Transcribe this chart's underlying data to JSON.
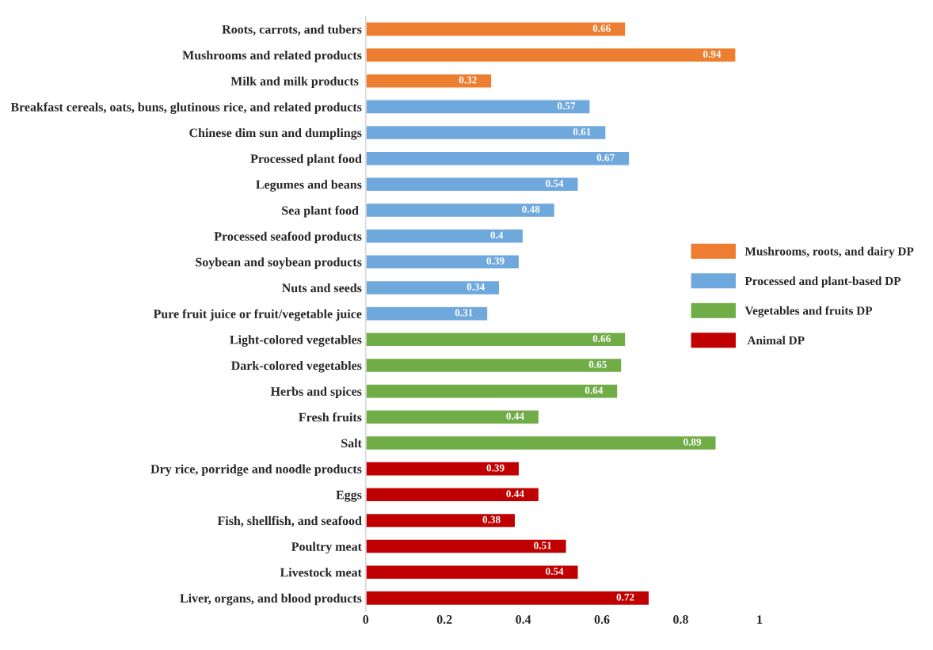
{
  "chart_data": {
    "type": "bar",
    "orientation": "horizontal",
    "categories": [
      "Roots, carrots, and tubers",
      "Mushrooms and related products",
      "Milk and milk products ",
      "Breakfast cereals, oats, buns, glutinous rice, and related products",
      "Chinese dim sun and dumplings",
      "Processed plant food",
      "Legumes and beans",
      "Sea plant food ",
      "Processed seafood products",
      "Soybean and soybean products",
      "Nuts and seeds",
      "Pure fruit juice or fruit/vegetable juice",
      "Light-colored vegetables",
      "Dark-colored vegetables",
      "Herbs and spices",
      "Fresh fruits",
      "Salt",
      "Dry rice, porridge and noodle products",
      "Eggs",
      "Fish, shellfish, and seafood",
      "Poultry meat",
      "Livestock meat",
      "Liver, organs, and blood products"
    ],
    "series": [
      {
        "name": "Mushrooms, roots, and dairy DP",
        "color": "#ed7d31",
        "values": [
          0.66,
          0.94,
          0.32,
          null,
          null,
          null,
          null,
          null,
          null,
          null,
          null,
          null,
          null,
          null,
          null,
          null,
          null,
          null,
          null,
          null,
          null,
          null,
          null
        ]
      },
      {
        "name": "Processed and plant-based DP",
        "color": "#6fa8dc",
        "values": [
          null,
          null,
          null,
          0.57,
          0.61,
          0.67,
          0.54,
          0.48,
          0.4,
          0.39,
          0.34,
          0.31,
          null,
          null,
          null,
          null,
          null,
          null,
          null,
          null,
          null,
          null,
          null
        ]
      },
      {
        "name": "Vegetables and fruits DP",
        "color": "#70ad47",
        "values": [
          null,
          null,
          null,
          null,
          null,
          null,
          null,
          null,
          null,
          null,
          null,
          null,
          0.66,
          0.65,
          0.64,
          0.44,
          0.89,
          null,
          null,
          null,
          null,
          null,
          null
        ]
      },
      {
        "name": " Animal DP",
        "color": "#c00000",
        "values": [
          null,
          null,
          null,
          null,
          null,
          null,
          null,
          null,
          null,
          null,
          null,
          null,
          null,
          null,
          null,
          null,
          null,
          0.39,
          0.44,
          0.38,
          0.51,
          0.54,
          0.72
        ]
      }
    ],
    "xlim": [
      0,
      1
    ],
    "xticks": [
      0,
      {
        "value": 0.2,
        "label": "0.2"
      },
      {
        "value": 0.4,
        "label": "0.4"
      },
      {
        "value": 0.6,
        "label": "0.6"
      },
      {
        "value": 0.8,
        "label": "0.8"
      },
      1
    ],
    "data_labels": true,
    "legend": "right",
    "grid": false
  }
}
